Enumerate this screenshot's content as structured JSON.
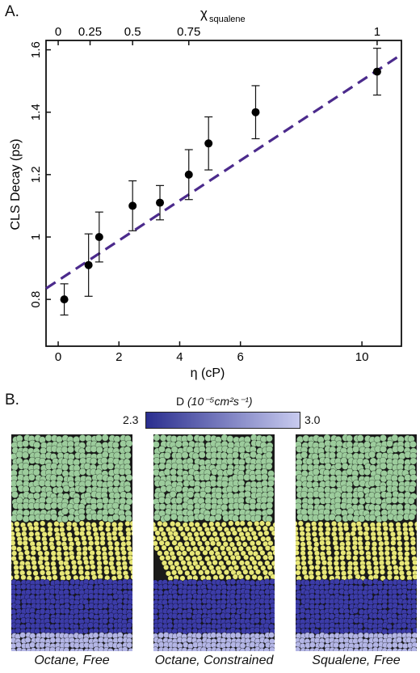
{
  "panel_a_label": "A.",
  "panel_b_label": "B.",
  "chart_data": {
    "type": "scatter",
    "title": "",
    "xlabel": "η (cP)",
    "ylabel": "CLS Decay (ps)",
    "top_axis_label_main": "χ",
    "top_axis_label_sub": "squalene",
    "xlim": [
      -0.4,
      11.3
    ],
    "ylim": [
      0.65,
      1.63
    ],
    "x_ticks": [
      0,
      2,
      4,
      6,
      10
    ],
    "x_tick_labels": [
      "0",
      "2",
      "4",
      "6",
      "10"
    ],
    "y_ticks": [
      0.8,
      1.0,
      1.2,
      1.4,
      1.6
    ],
    "y_tick_labels": [
      "0.8",
      "1",
      "1.2",
      "1.4",
      "1.6"
    ],
    "top_ticks": [
      0.0,
      1.05,
      2.45,
      4.3,
      10.5
    ],
    "top_tick_labels": [
      "0",
      "0.25",
      "0.5",
      "0.75",
      "1"
    ],
    "series": [
      {
        "x": [
          0.2,
          1.0,
          1.35,
          2.45,
          3.35,
          4.3,
          4.95,
          6.5,
          10.5
        ],
        "y": [
          0.8,
          0.91,
          1.0,
          1.1,
          1.11,
          1.2,
          1.3,
          1.4,
          1.53
        ],
        "err": [
          0.05,
          0.1,
          0.08,
          0.08,
          0.055,
          0.08,
          0.085,
          0.085,
          0.075
        ]
      }
    ],
    "fit_line": {
      "x": [
        -0.4,
        11.3
      ],
      "y": [
        0.835,
        1.585
      ],
      "style": "dashed",
      "color": "#4b2a8c"
    },
    "marker_color": "#000000",
    "grid": false
  },
  "panel_b": {
    "colorbar_label_prefix": "D",
    "colorbar_label_units": "(10⁻⁵cm²s⁻¹)",
    "colorbar_min": "2.3",
    "colorbar_max": "3.0",
    "colorbar_colors": [
      "#2a2e8f",
      "#c8cbef"
    ],
    "layer_colors": {
      "top": "#9ccc9c",
      "middle": "#e8e878",
      "bottom": "#3c3ca8",
      "base": "#b4b6e6"
    },
    "boxes": [
      {
        "caption": "Octane, Free"
      },
      {
        "caption": "Octane, Constrained"
      },
      {
        "caption": "Squalene, Free"
      }
    ]
  }
}
